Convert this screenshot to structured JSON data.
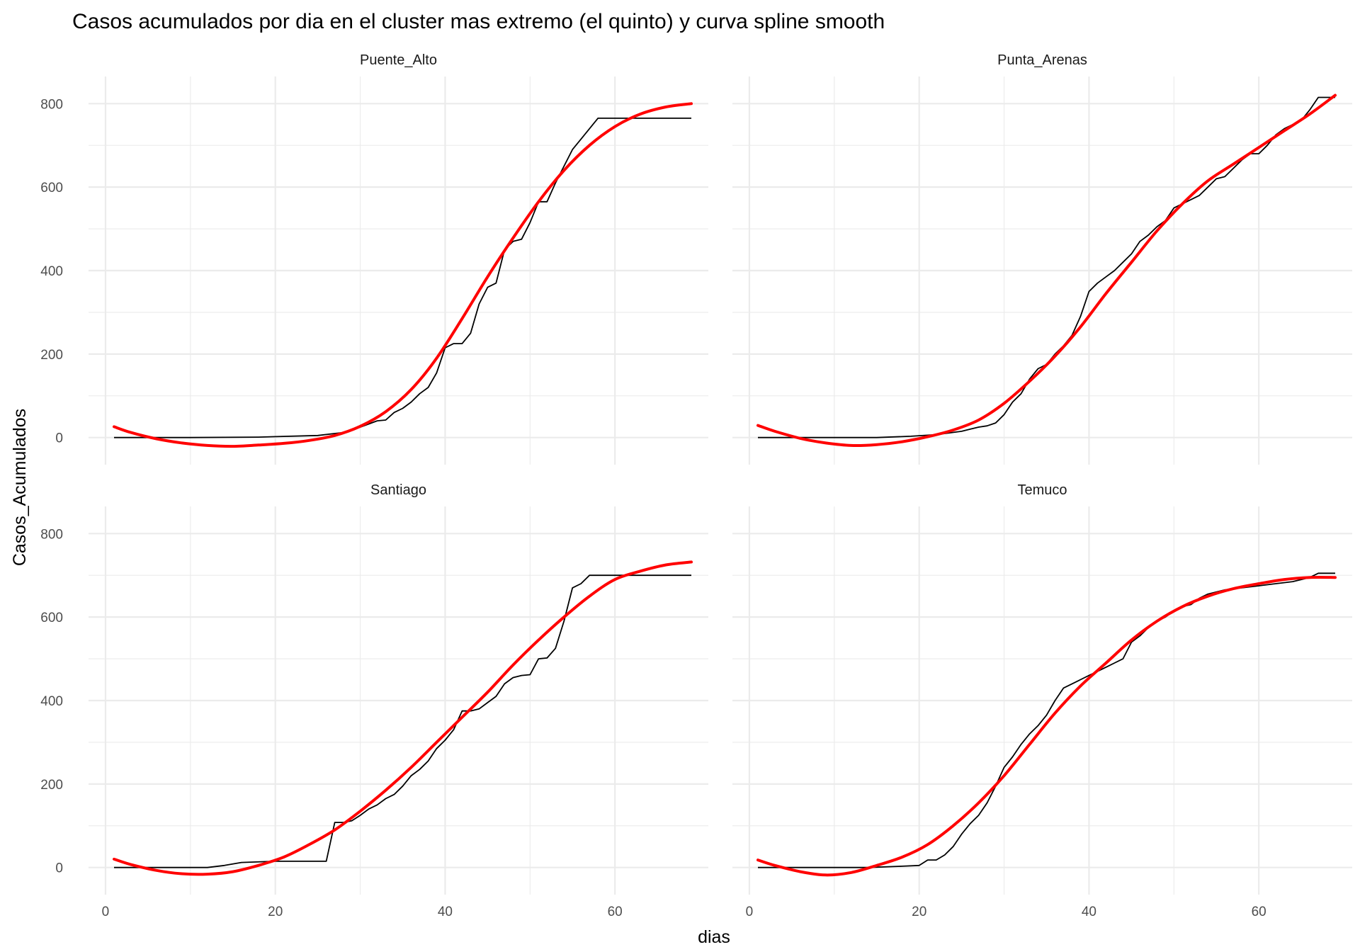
{
  "chart_data": {
    "type": "line",
    "title": "Casos acumulados por dia en el cluster mas extremo (el quinto) y curva spline smooth",
    "xlabel": "dias",
    "ylabel": "Casos_Acumulados",
    "xlim": [
      -2,
      71
    ],
    "ylim": [
      -65,
      865
    ],
    "x_ticks": [
      0,
      20,
      40,
      60
    ],
    "y_ticks": [
      0,
      200,
      400,
      600,
      800
    ],
    "grid": true,
    "colors": {
      "observed": "#000000",
      "smooth": "#ff0000",
      "grid": "#ebebeb"
    },
    "panels": [
      {
        "name": "Puente_Alto",
        "observed": [
          [
            1,
            0
          ],
          [
            10,
            0
          ],
          [
            18,
            1
          ],
          [
            25,
            5
          ],
          [
            28,
            12
          ],
          [
            30,
            25
          ],
          [
            32,
            40
          ],
          [
            33,
            42
          ],
          [
            34,
            60
          ],
          [
            35,
            70
          ],
          [
            36,
            85
          ],
          [
            37,
            105
          ],
          [
            38,
            120
          ],
          [
            39,
            155
          ],
          [
            40,
            215
          ],
          [
            41,
            225
          ],
          [
            42,
            225
          ],
          [
            43,
            250
          ],
          [
            44,
            320
          ],
          [
            45,
            360
          ],
          [
            46,
            370
          ],
          [
            47,
            450
          ],
          [
            48,
            470
          ],
          [
            49,
            475
          ],
          [
            50,
            515
          ],
          [
            51,
            565
          ],
          [
            52,
            565
          ],
          [
            53,
            610
          ],
          [
            54,
            650
          ],
          [
            55,
            690
          ],
          [
            56,
            715
          ],
          [
            58,
            765
          ],
          [
            60,
            765
          ],
          [
            69,
            765
          ]
        ],
        "smooth": [
          [
            1,
            26
          ],
          [
            3,
            12
          ],
          [
            6,
            -3
          ],
          [
            9,
            -13
          ],
          [
            12,
            -19
          ],
          [
            15,
            -21
          ],
          [
            18,
            -18
          ],
          [
            21,
            -14
          ],
          [
            24,
            -7
          ],
          [
            27,
            5
          ],
          [
            30,
            27
          ],
          [
            33,
            62
          ],
          [
            36,
            115
          ],
          [
            39,
            190
          ],
          [
            42,
            285
          ],
          [
            45,
            385
          ],
          [
            48,
            478
          ],
          [
            51,
            565
          ],
          [
            54,
            640
          ],
          [
            57,
            700
          ],
          [
            60,
            745
          ],
          [
            63,
            775
          ],
          [
            66,
            792
          ],
          [
            69,
            800
          ]
        ]
      },
      {
        "name": "Punta_Arenas",
        "observed": [
          [
            1,
            0
          ],
          [
            15,
            0
          ],
          [
            19,
            3
          ],
          [
            22,
            7
          ],
          [
            25,
            15
          ],
          [
            26,
            20
          ],
          [
            27,
            25
          ],
          [
            28,
            28
          ],
          [
            29,
            35
          ],
          [
            30,
            55
          ],
          [
            31,
            85
          ],
          [
            32,
            105
          ],
          [
            33,
            140
          ],
          [
            34,
            165
          ],
          [
            35,
            175
          ],
          [
            36,
            200
          ],
          [
            37,
            220
          ],
          [
            38,
            245
          ],
          [
            39,
            290
          ],
          [
            40,
            350
          ],
          [
            41,
            370
          ],
          [
            42,
            385
          ],
          [
            43,
            400
          ],
          [
            44,
            420
          ],
          [
            45,
            440
          ],
          [
            46,
            470
          ],
          [
            47,
            485
          ],
          [
            48,
            505
          ],
          [
            49,
            520
          ],
          [
            50,
            550
          ],
          [
            51,
            560
          ],
          [
            52,
            570
          ],
          [
            53,
            580
          ],
          [
            54,
            600
          ],
          [
            55,
            620
          ],
          [
            56,
            625
          ],
          [
            57,
            645
          ],
          [
            58,
            665
          ],
          [
            59,
            680
          ],
          [
            60,
            680
          ],
          [
            61,
            700
          ],
          [
            62,
            725
          ],
          [
            63,
            740
          ],
          [
            64,
            750
          ],
          [
            65,
            760
          ],
          [
            66,
            785
          ],
          [
            67,
            815
          ],
          [
            68,
            815
          ],
          [
            69,
            815
          ]
        ],
        "smooth": [
          [
            1,
            29
          ],
          [
            3,
            15
          ],
          [
            6,
            -2
          ],
          [
            9,
            -13
          ],
          [
            12,
            -19
          ],
          [
            15,
            -17
          ],
          [
            18,
            -10
          ],
          [
            21,
            2
          ],
          [
            24,
            18
          ],
          [
            27,
            42
          ],
          [
            30,
            82
          ],
          [
            33,
            135
          ],
          [
            36,
            195
          ],
          [
            39,
            265
          ],
          [
            42,
            345
          ],
          [
            45,
            420
          ],
          [
            48,
            495
          ],
          [
            51,
            560
          ],
          [
            54,
            615
          ],
          [
            57,
            655
          ],
          [
            60,
            695
          ],
          [
            63,
            735
          ],
          [
            66,
            775
          ],
          [
            69,
            820
          ]
        ]
      },
      {
        "name": "Santiago",
        "observed": [
          [
            1,
            0
          ],
          [
            12,
            0
          ],
          [
            14,
            5
          ],
          [
            16,
            12
          ],
          [
            20,
            15
          ],
          [
            24,
            15
          ],
          [
            26,
            15
          ],
          [
            27,
            108
          ],
          [
            28,
            108
          ],
          [
            29,
            112
          ],
          [
            30,
            125
          ],
          [
            31,
            140
          ],
          [
            32,
            150
          ],
          [
            33,
            165
          ],
          [
            34,
            175
          ],
          [
            35,
            195
          ],
          [
            36,
            220
          ],
          [
            37,
            235
          ],
          [
            38,
            255
          ],
          [
            39,
            285
          ],
          [
            40,
            305
          ],
          [
            41,
            330
          ],
          [
            42,
            375
          ],
          [
            43,
            375
          ],
          [
            44,
            380
          ],
          [
            45,
            395
          ],
          [
            46,
            410
          ],
          [
            47,
            440
          ],
          [
            48,
            455
          ],
          [
            49,
            460
          ],
          [
            50,
            462
          ],
          [
            51,
            500
          ],
          [
            52,
            502
          ],
          [
            53,
            525
          ],
          [
            54,
            590
          ],
          [
            55,
            670
          ],
          [
            56,
            680
          ],
          [
            57,
            700
          ],
          [
            60,
            700
          ],
          [
            69,
            700
          ]
        ],
        "smooth": [
          [
            1,
            20
          ],
          [
            3,
            7
          ],
          [
            6,
            -7
          ],
          [
            9,
            -15
          ],
          [
            12,
            -16
          ],
          [
            15,
            -10
          ],
          [
            18,
            5
          ],
          [
            21,
            25
          ],
          [
            24,
            55
          ],
          [
            27,
            90
          ],
          [
            30,
            135
          ],
          [
            33,
            185
          ],
          [
            36,
            240
          ],
          [
            39,
            300
          ],
          [
            42,
            360
          ],
          [
            45,
            420
          ],
          [
            48,
            485
          ],
          [
            51,
            545
          ],
          [
            54,
            600
          ],
          [
            57,
            650
          ],
          [
            60,
            690
          ],
          [
            63,
            710
          ],
          [
            66,
            725
          ],
          [
            69,
            732
          ]
        ]
      },
      {
        "name": "Temuco",
        "observed": [
          [
            1,
            0
          ],
          [
            14,
            0
          ],
          [
            18,
            3
          ],
          [
            20,
            5
          ],
          [
            21,
            18
          ],
          [
            22,
            18
          ],
          [
            23,
            30
          ],
          [
            24,
            50
          ],
          [
            25,
            80
          ],
          [
            26,
            105
          ],
          [
            27,
            125
          ],
          [
            28,
            155
          ],
          [
            29,
            195
          ],
          [
            30,
            240
          ],
          [
            31,
            265
          ],
          [
            32,
            295
          ],
          [
            33,
            320
          ],
          [
            34,
            340
          ],
          [
            35,
            365
          ],
          [
            36,
            400
          ],
          [
            37,
            430
          ],
          [
            38,
            440
          ],
          [
            39,
            450
          ],
          [
            40,
            460
          ],
          [
            41,
            470
          ],
          [
            42,
            480
          ],
          [
            43,
            490
          ],
          [
            44,
            500
          ],
          [
            45,
            540
          ],
          [
            46,
            555
          ],
          [
            47,
            575
          ],
          [
            48,
            590
          ],
          [
            49,
            600
          ],
          [
            50,
            615
          ],
          [
            51,
            625
          ],
          [
            52,
            630
          ],
          [
            53,
            645
          ],
          [
            54,
            655
          ],
          [
            55,
            660
          ],
          [
            56,
            665
          ],
          [
            58,
            670
          ],
          [
            60,
            675
          ],
          [
            62,
            680
          ],
          [
            64,
            685
          ],
          [
            66,
            695
          ],
          [
            67,
            705
          ],
          [
            69,
            705
          ]
        ],
        "smooth": [
          [
            1,
            18
          ],
          [
            3,
            5
          ],
          [
            6,
            -10
          ],
          [
            9,
            -18
          ],
          [
            12,
            -12
          ],
          [
            15,
            5
          ],
          [
            18,
            25
          ],
          [
            21,
            55
          ],
          [
            24,
            100
          ],
          [
            27,
            155
          ],
          [
            30,
            220
          ],
          [
            33,
            295
          ],
          [
            36,
            370
          ],
          [
            39,
            435
          ],
          [
            42,
            490
          ],
          [
            45,
            545
          ],
          [
            48,
            590
          ],
          [
            51,
            625
          ],
          [
            54,
            650
          ],
          [
            57,
            668
          ],
          [
            60,
            680
          ],
          [
            63,
            690
          ],
          [
            66,
            695
          ],
          [
            69,
            695
          ]
        ]
      }
    ]
  }
}
